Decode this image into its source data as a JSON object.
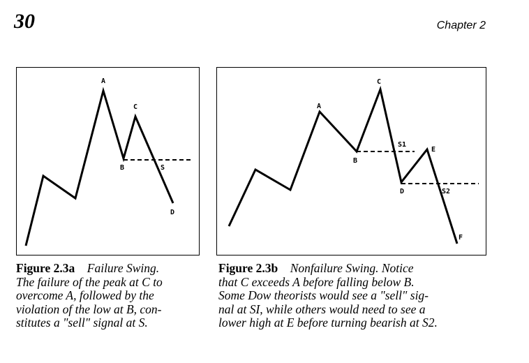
{
  "header": {
    "page_number": "30",
    "chapter": "Chapter 2"
  },
  "figure_a": {
    "points": {
      "A": "A",
      "B": "B",
      "C": "C",
      "S": "S",
      "D": "D"
    },
    "caption_label": "Figure 2.3a",
    "caption_lines": [
      "Failure Swing.",
      "The failure of the peak at C to",
      "overcome A, followed by the",
      "violation of the low at B, con-",
      "stitutes a \"sell\" signal at S."
    ]
  },
  "figure_b": {
    "points": {
      "A": "A",
      "B": "B",
      "C": "C",
      "S1": "S1",
      "E": "E",
      "D": "D",
      "S2": "S2",
      "F": "F"
    },
    "caption_label": "Figure 2.3b",
    "caption_lines": [
      "Nonfailure Swing. Notice",
      "that C exceeds A before falling below B.",
      "Some Dow theorists would see a \"sell\" sig-",
      "nal at SI, while others would need to see a",
      "lower high at E before turning bearish at S2."
    ]
  }
}
